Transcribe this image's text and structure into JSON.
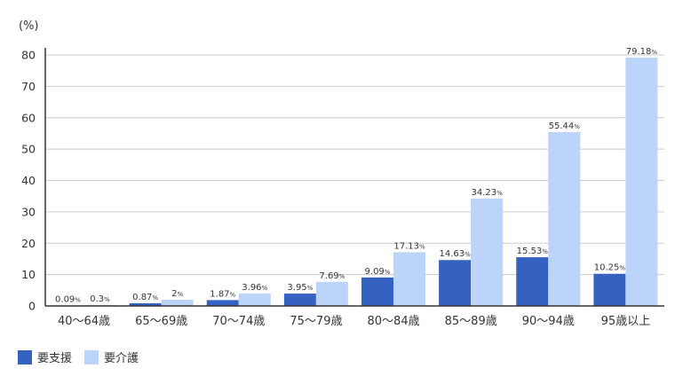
{
  "chart_data": {
    "type": "bar",
    "unit_label": "(%)",
    "categories": [
      "40～64歳",
      "65～69歳",
      "70～74歳",
      "75～79歳",
      "80～84歳",
      "85～89歳",
      "90～94歳",
      "95歳以上"
    ],
    "series": [
      {
        "name": "要支援",
        "color": "#3561c1",
        "values": [
          0.09,
          0.87,
          1.87,
          3.95,
          9.09,
          14.63,
          15.53,
          10.25
        ],
        "labels": [
          "0.09",
          "0.87",
          "1.87",
          "3.95",
          "9.09",
          "14.63",
          "15.53",
          "10.25"
        ]
      },
      {
        "name": "要介護",
        "color": "#bcd4f9",
        "values": [
          0.3,
          2,
          3.96,
          7.69,
          17.13,
          34.23,
          55.44,
          79.18
        ],
        "labels": [
          "0.3",
          "2",
          "3.96",
          "7.69",
          "17.13",
          "34.23",
          "55.44",
          "79.18"
        ]
      }
    ],
    "data_label_suffix": "%",
    "ylim": [
      0,
      80
    ],
    "yticks": [
      "0",
      "10",
      "20",
      "30",
      "40",
      "50",
      "60",
      "70",
      "80"
    ],
    "grid": true,
    "legend_position": "bottom-left"
  }
}
